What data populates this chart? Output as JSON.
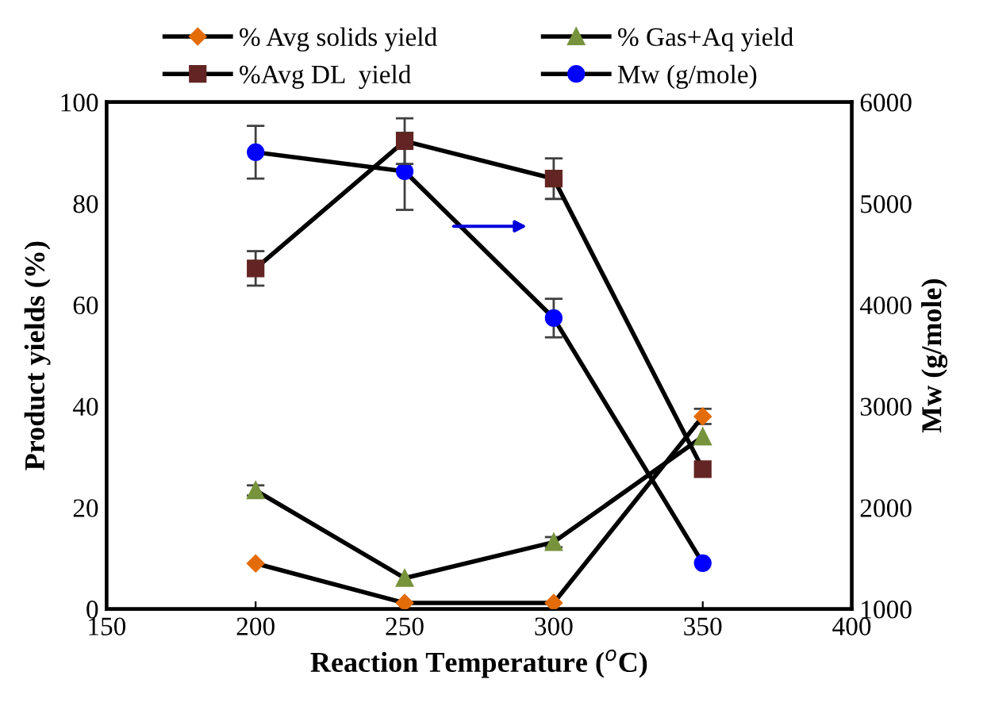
{
  "chart_data": {
    "type": "line",
    "xlabel": "Reaction Temperature ($^{o}$C)",
    "ylabel": "Product yields (%)",
    "y2label": "Mw (g/mole)",
    "x": [
      200,
      250,
      300,
      350
    ],
    "series": [
      {
        "name": "% Avg solids yield",
        "color": "#e36c09",
        "marker": "diamond",
        "values": [
          9,
          1.2,
          1.2,
          38
        ],
        "errors": [
          null,
          null,
          null,
          1.5
        ]
      },
      {
        "name": "%Avg DL  yield",
        "color": "#632523",
        "marker": "square",
        "values": [
          67.2,
          92.3,
          84.9,
          27.6
        ],
        "errors": [
          3.4,
          4.5,
          4,
          null
        ]
      },
      {
        "name": "% Gas+Aq yield",
        "color": "#77933c",
        "marker": "triangle",
        "values": [
          23.4,
          6.1,
          13.2,
          34
        ],
        "errors": [
          1,
          null,
          1,
          null
        ]
      },
      {
        "name": "Mw (g/mole)",
        "color": "#0000ff",
        "marker": "circle",
        "axis": "y2",
        "values": [
          5505,
          5317,
          3870,
          1453
        ],
        "errors": [
          260,
          380,
          190,
          null
        ]
      }
    ],
    "xlim": [
      150,
      400
    ],
    "xticks": [
      150,
      200,
      250,
      300,
      350,
      400
    ],
    "ylim": [
      0,
      100
    ],
    "yticks": [
      0,
      20,
      40,
      60,
      80,
      100
    ],
    "y2lim": [
      1000,
      6000
    ],
    "y2ticks": [
      1000,
      2000,
      3000,
      4000,
      5000,
      6000
    ],
    "grid": false,
    "legend": "top",
    "line_style": "solid"
  }
}
